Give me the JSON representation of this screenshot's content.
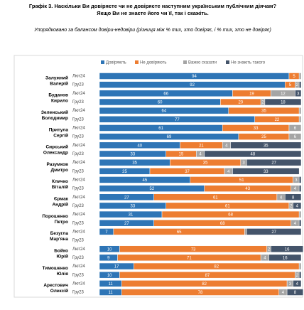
{
  "chart_data": {
    "type": "stacked-barh",
    "title": "Графік 3. Наскільки Ви довіряєте чи не довіряєте наступним українським публічним діячам? Якщо Ви не знаєте його чи її, так і скажіть.",
    "subtitle": "Упорядковано за балансом довіри-недовіри (різниця між % тих, хто довіряє, і % тих, хто не довіряє)",
    "groups": [
      [
        "Залужний",
        "Валерій"
      ],
      [
        "Буданов",
        "Кирило"
      ],
      [
        "Зеленський",
        "Володимир"
      ],
      [
        "Притула",
        "Сергій"
      ],
      [
        "Сирський",
        "Олександр"
      ],
      [
        "Разумков",
        "Дмитро"
      ],
      [
        "Кличко",
        "Віталій"
      ],
      [
        "Єрмак",
        "Андрій"
      ],
      [
        "Порошенко",
        "Петро"
      ],
      [
        "Безугла",
        "Мар'яна"
      ],
      [
        "Бойко",
        "Юрій"
      ],
      [
        "Тимошенко",
        "Юлія"
      ],
      [
        "Арестович",
        "Олексій"
      ]
    ],
    "categories": [
      "Лют24",
      "Гру23",
      "Лют24",
      "Гру23",
      "Лют24",
      "Гру23",
      "Лют24",
      "Гру23",
      "Лют24",
      "Гру23",
      "Лют24",
      "Гру23",
      "Лют24",
      "Гру23",
      "Лют24",
      "Гру23",
      "Лют24",
      "Гру23",
      "Лют24",
      "Гру23",
      "Лют24",
      "Гру23",
      "Лют24",
      "Гру23",
      "Лют24",
      "Гру23"
    ],
    "xlim": [
      0,
      100
    ],
    "series": [
      {
        "name": "Довіряють",
        "color": "#2e75b6",
        "values": [
          94,
          92,
          66,
          60,
          64,
          77,
          61,
          69,
          40,
          33,
          35,
          25,
          45,
          52,
          27,
          33,
          31,
          27,
          7,
          null,
          10,
          9,
          17,
          10,
          11,
          11
        ]
      },
      {
        "name": "Не довіряють",
        "color": "#ed7d31",
        "values": [
          5,
          5,
          19,
          20,
          35,
          22,
          33,
          25,
          21,
          15,
          35,
          37,
          51,
          43,
          61,
          61,
          68,
          68,
          65,
          null,
          73,
          71,
          82,
          87,
          82,
          78
        ]
      },
      {
        "name": "Важко сказати",
        "color": "#a5a5a5",
        "values": [
          1,
          2,
          12,
          2,
          1,
          1,
          6,
          6,
          4,
          4,
          3,
          4,
          3,
          4,
          4,
          2,
          1,
          4,
          1,
          null,
          2,
          4,
          1,
          2,
          3,
          4
        ]
      },
      {
        "name": "Не знають такого",
        "color": "#44546a",
        "values": [
          null,
          1,
          3,
          18,
          null,
          null,
          null,
          null,
          35,
          48,
          27,
          33,
          1,
          1,
          8,
          4,
          null,
          1,
          27,
          null,
          16,
          16,
          null,
          1,
          4,
          8
        ]
      }
    ]
  }
}
